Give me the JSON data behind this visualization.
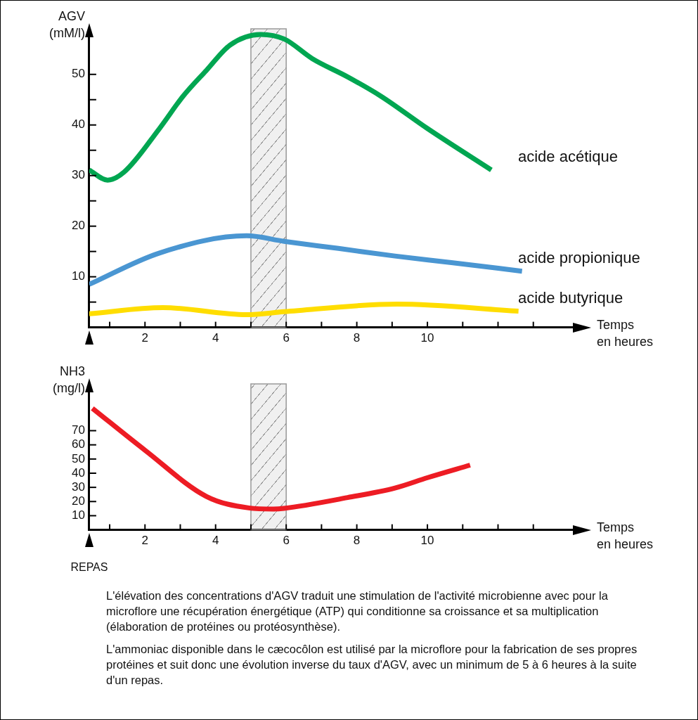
{
  "chart_data": [
    {
      "type": "line",
      "ylabel": "AGV (mM/l)",
      "xlabel": "Temps en heures",
      "xlim": [
        0.42,
        14.2
      ],
      "ylim": [
        0,
        59
      ],
      "xticks": [
        {
          "value": 1,
          "label": null
        },
        2,
        {
          "value": 3,
          "label": null
        },
        4,
        {
          "value": 5,
          "label": null
        },
        6,
        {
          "value": 7,
          "label": null
        },
        8,
        {
          "value": 9,
          "label": null
        },
        10,
        {
          "value": 11,
          "label": null
        },
        {
          "value": 12,
          "label": null
        },
        {
          "value": 13,
          "label": null
        }
      ],
      "yticks": [
        {
          "value": 5,
          "label": null
        },
        10,
        {
          "value": 15,
          "label": null
        },
        20,
        {
          "value": 25,
          "label": null
        },
        30,
        {
          "value": 35,
          "label": null
        },
        40,
        {
          "value": 45,
          "label": null
        },
        50
      ],
      "legend": false,
      "marker": "none",
      "line_style": "solid",
      "bands": [
        {
          "axis": "x",
          "from": 5,
          "to": 6,
          "color": "#999999"
        }
      ],
      "series": [
        {
          "name": "acide acétique",
          "color": "#00a651",
          "x": [
            0.42,
            0.94,
            1.41,
            2.41,
            3.08,
            3.74,
            4.41,
            5.28,
            5.94,
            6.74,
            7.74,
            8.68,
            10.0,
            11.81
          ],
          "values": [
            31.1,
            29.1,
            30.7,
            39.3,
            45.7,
            50.8,
            55.8,
            57.9,
            57.0,
            53.1,
            49.5,
            45.7,
            39.3,
            31.1
          ]
        },
        {
          "name": "acide propionique",
          "color": "#4a96d2",
          "x": [
            0.42,
            2.41,
            4.88,
            5.94,
            7.48,
            9.08,
            10.68,
            12.68
          ],
          "values": [
            8.5,
            14.7,
            18.1,
            17.0,
            15.6,
            14.1,
            12.8,
            11.1
          ]
        },
        {
          "name": "acide butyrique",
          "color": "#ffdd00",
          "x": [
            0.42,
            2.51,
            4.88,
            5.94,
            9.14,
            12.58
          ],
          "values": [
            2.7,
            3.9,
            2.5,
            3.1,
            4.6,
            3.2
          ]
        }
      ]
    },
    {
      "type": "line",
      "ylabel": "NH3 (mg/l)",
      "xlabel": "Temps en heures",
      "xlim": [
        0.42,
        14.2
      ],
      "ylim": [
        0,
        103
      ],
      "xticks": [
        {
          "value": 1,
          "label": null
        },
        2,
        {
          "value": 3,
          "label": null
        },
        4,
        {
          "value": 5,
          "label": null
        },
        6,
        {
          "value": 7,
          "label": null
        },
        8,
        {
          "value": 9,
          "label": null
        },
        10,
        {
          "value": 11,
          "label": null
        },
        {
          "value": 12,
          "label": null
        },
        {
          "value": 13,
          "label": null
        }
      ],
      "yticks": [
        10,
        20,
        30,
        40,
        50,
        60,
        70
      ],
      "legend": false,
      "marker": "none",
      "line_style": "solid",
      "bands": [
        {
          "axis": "x",
          "from": 5,
          "to": 6,
          "color": "#999999"
        }
      ],
      "series": [
        {
          "color": "#ed1c24",
          "x": [
            0.51,
            2.01,
            3.74,
            4.94,
            5.64,
            5.94,
            7.74,
            9.08,
            10.01,
            11.21
          ],
          "values": [
            85.8,
            56.0,
            23.6,
            15.5,
            14.7,
            15.2,
            22.8,
            29.5,
            36.9,
            45.7
          ]
        }
      ],
      "annotations": [
        "REPAS",
        "L'élévation des concentrations d'AGV traduit une stimulation de l'activité microbienne avec pour la microflore une récupération énergétique (ATP) qui conditionne sa croissance et sa multiplication (élaboration de protéines ou protéosynthèse).",
        "L'ammoniac disponible dans le cæcocôlon est utilisé par la microflore pour la fabrication de ses propres protéines et suit donc une évolution inverse du taux d'AGV, avec un minimum de 5 à 6 heures à la suite d'un repas."
      ]
    }
  ]
}
